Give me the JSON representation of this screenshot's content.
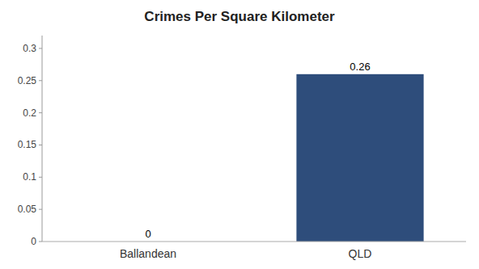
{
  "chart_data": {
    "type": "bar",
    "title": "Crimes Per Square Kilometer",
    "categories": [
      "Ballandean",
      "QLD"
    ],
    "values": [
      0,
      0.26
    ],
    "color": "#2e4d7b",
    "ylim": [
      0,
      0.32
    ],
    "yticks": [
      0,
      0.05,
      0.1,
      0.15,
      0.2,
      0.25,
      0.3
    ],
    "grid": false,
    "data_labels": true
  }
}
